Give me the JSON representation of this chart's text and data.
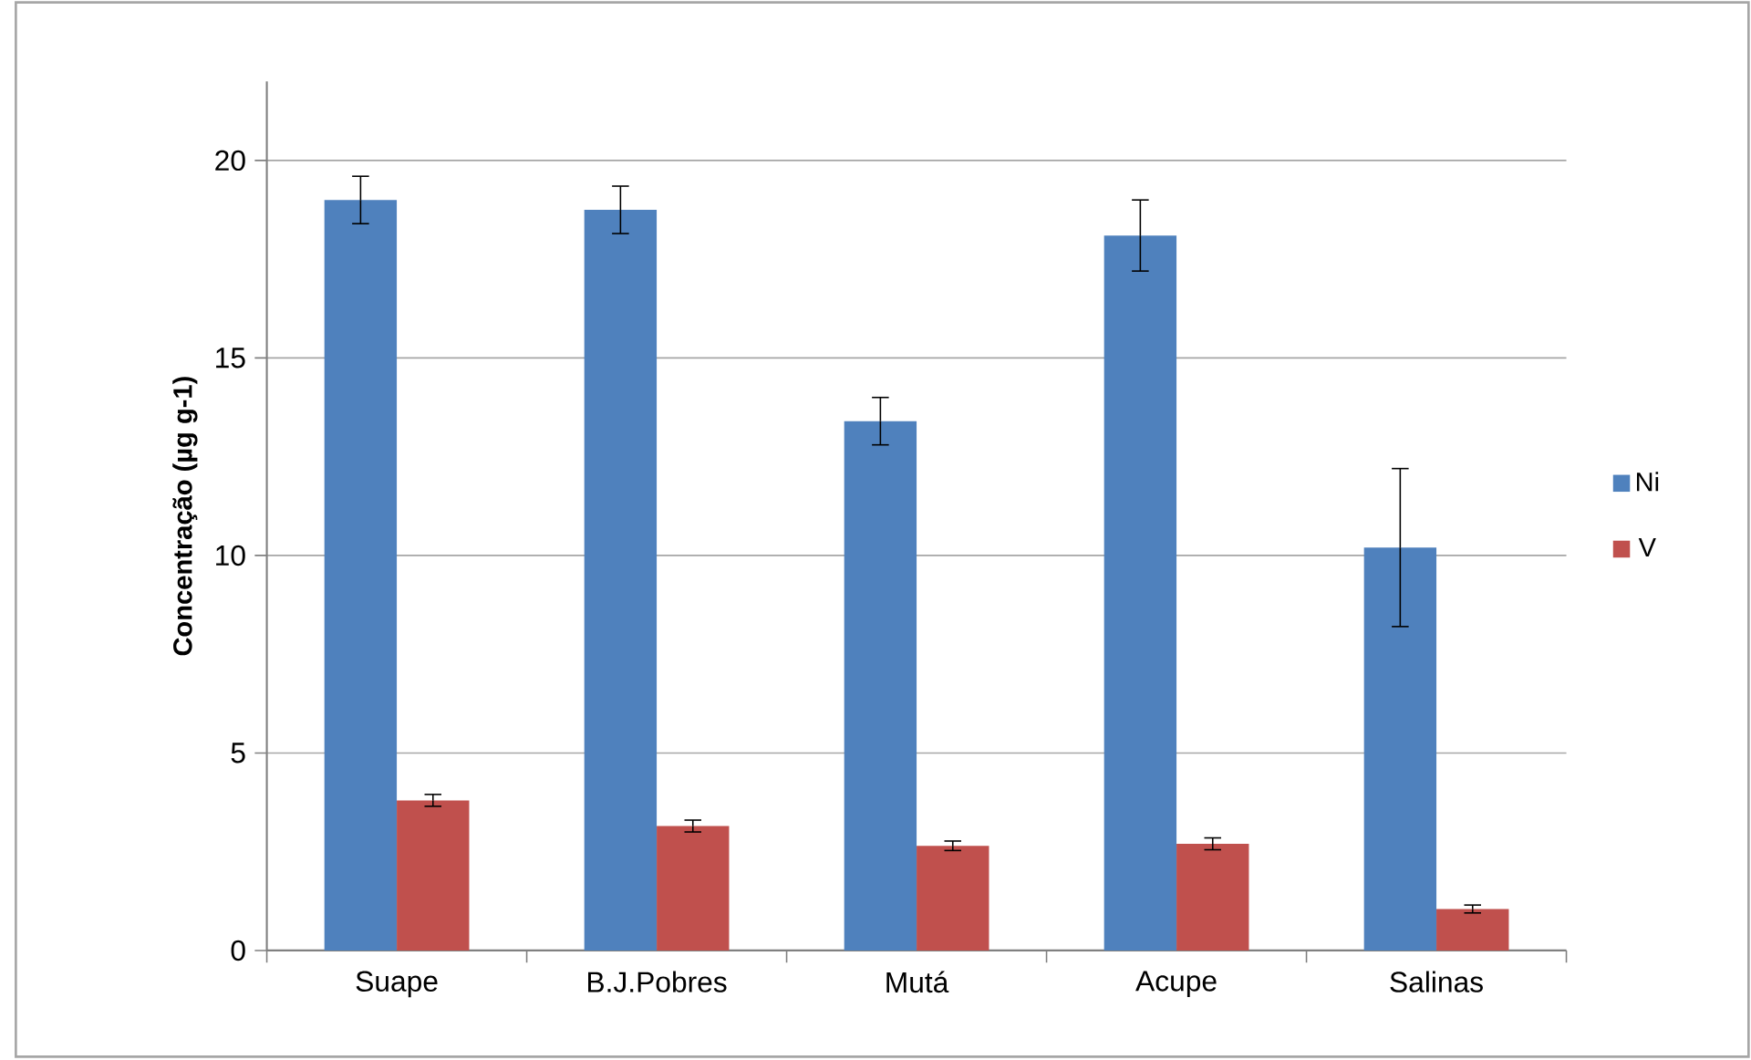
{
  "chart_data": {
    "type": "bar",
    "ylabel": "**Concentração (µg g-1)**",
    "categories": [
      "Suape",
      "B.J.Pobres",
      "Mutá",
      "Acupe",
      "Salinas"
    ],
    "series": [
      {
        "name": "Ni",
        "color": "#4f81bd",
        "values": [
          19.0,
          18.75,
          13.4,
          18.1,
          10.2
        ],
        "errors": [
          0.6,
          0.6,
          0.6,
          0.9,
          2.0
        ]
      },
      {
        "name": "V",
        "color": "#c0504d",
        "values": [
          3.8,
          3.15,
          2.65,
          2.7,
          1.05
        ],
        "errors": [
          0.15,
          0.15,
          0.12,
          0.15,
          0.1
        ]
      }
    ],
    "ylim": [
      0,
      22
    ],
    "yticks": [
      0,
      5,
      10,
      15,
      20
    ],
    "grid": "y",
    "legend": "right"
  }
}
